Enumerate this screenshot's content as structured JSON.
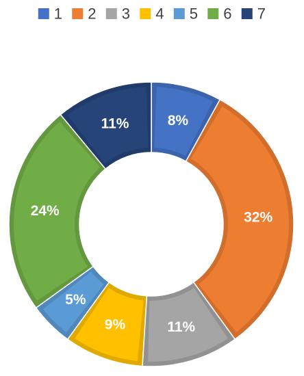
{
  "chart_data": {
    "type": "pie",
    "variant": "doughnut",
    "legend_position": "top",
    "categories": [
      "1",
      "2",
      "3",
      "4",
      "5",
      "6",
      "7"
    ],
    "values": [
      8,
      32,
      11,
      9,
      5,
      24,
      11
    ],
    "data_labels": [
      "8%",
      "32%",
      "11%",
      "9%",
      "5%",
      "24%",
      "11%"
    ],
    "colors": [
      "#4472C4",
      "#ED7D31",
      "#A5A5A5",
      "#FFC000",
      "#5B9BD5",
      "#70AD47",
      "#264478"
    ],
    "start_angle_degrees": 0,
    "direction": "clockwise"
  }
}
